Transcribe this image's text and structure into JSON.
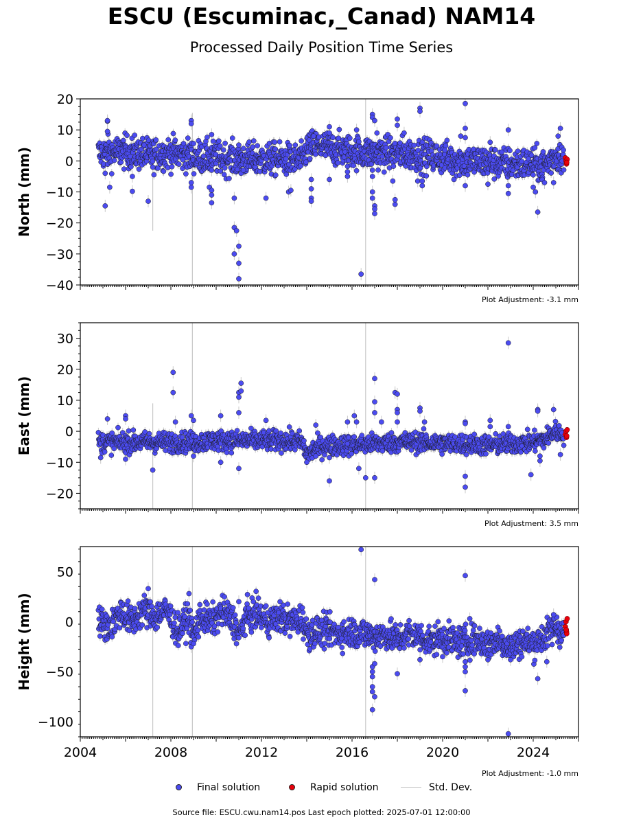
{
  "title": "ESCU (Escuminac,_Canad) NAM14",
  "subtitle": "Processed Daily Position Time Series",
  "colors": {
    "final": "#4b4bf0",
    "final_edge": "#1a1a1a",
    "rapid": "#e8000b",
    "std": "#c8c8c8"
  },
  "legend": {
    "final": "Final solution",
    "rapid": "Rapid solution",
    "std": "Std. Dev."
  },
  "source_text": "Source file: ESCU.cwu.nam14.pos  Last epoch plotted: 2025-07-01 12:00:00",
  "chart_data": [
    {
      "type": "scatter",
      "ylabel": "North (mm)",
      "adjustment": "Plot Adjustment: -3.1 mm",
      "xlim": [
        2004.0,
        2026.0
      ],
      "ylim": [
        -40,
        20
      ],
      "yticks": [
        -40,
        -30,
        -20,
        -10,
        0,
        10,
        20
      ],
      "yticklabels": [
        "−40",
        "−30",
        "−20",
        "−10",
        "0",
        "10",
        "20"
      ],
      "grid": false,
      "baseline": [
        [
          2004.8,
          2.5
        ],
        [
          2006.0,
          3.0
        ],
        [
          2007.0,
          2.0
        ],
        [
          2008.0,
          2.5
        ],
        [
          2009.0,
          1.5
        ],
        [
          2010.0,
          1.0
        ],
        [
          2011.0,
          0.5
        ],
        [
          2012.0,
          0.5
        ],
        [
          2013.0,
          0.5
        ],
        [
          2013.8,
          0.0
        ],
        [
          2014.0,
          4.0
        ],
        [
          2014.5,
          5.0
        ],
        [
          2015.0,
          4.0
        ],
        [
          2016.0,
          3.0
        ],
        [
          2017.0,
          2.5
        ],
        [
          2018.0,
          2.5
        ],
        [
          2019.0,
          2.0
        ],
        [
          2020.0,
          1.0
        ],
        [
          2021.0,
          0.0
        ],
        [
          2022.0,
          -0.5
        ],
        [
          2023.0,
          -1.0
        ],
        [
          2024.0,
          -1.0
        ],
        [
          2024.5,
          -1.5
        ],
        [
          2025.0,
          2.0
        ],
        [
          2025.35,
          1.0
        ]
      ],
      "scatter": 2.6,
      "outliers": [
        [
          2005.2,
          12.8
        ],
        [
          2005.2,
          13.0
        ],
        [
          2005.2,
          9.5
        ],
        [
          2005.1,
          -4.0
        ],
        [
          2005.1,
          -14.5
        ],
        [
          2005.3,
          -8.5
        ],
        [
          2006.3,
          -9.8
        ],
        [
          2006.3,
          -5.0
        ],
        [
          2007.0,
          -13.0
        ],
        [
          2007.2,
          -2.0
        ],
        [
          2008.9,
          13.0
        ],
        [
          2008.9,
          12.0
        ],
        [
          2008.9,
          -7.0
        ],
        [
          2008.9,
          -8.5
        ],
        [
          2009.8,
          8.5
        ],
        [
          2009.7,
          -8.5
        ],
        [
          2009.8,
          -9.5
        ],
        [
          2009.8,
          -11.0
        ],
        [
          2009.8,
          -13.5
        ],
        [
          2009.8,
          -3.0
        ],
        [
          2010.8,
          -12.0
        ],
        [
          2010.8,
          -21.5
        ],
        [
          2010.8,
          -30.0
        ],
        [
          2010.9,
          -22.5
        ],
        [
          2011.0,
          -33.0
        ],
        [
          2011.0,
          -27.5
        ],
        [
          2011.0,
          -38.0
        ],
        [
          2011.1,
          -4.0
        ],
        [
          2011.2,
          -3.0
        ],
        [
          2012.2,
          -12.0
        ],
        [
          2013.2,
          -10.0
        ],
        [
          2013.3,
          -9.5
        ],
        [
          2014.2,
          -6.0
        ],
        [
          2014.2,
          -9.0
        ],
        [
          2014.2,
          -12.0
        ],
        [
          2014.2,
          -13.0
        ],
        [
          2014.3,
          8.0
        ],
        [
          2015.0,
          11.0
        ],
        [
          2015.0,
          9.0
        ],
        [
          2015.0,
          -6.0
        ],
        [
          2015.8,
          -3.5
        ],
        [
          2015.8,
          -5.0
        ],
        [
          2016.4,
          -36.5
        ],
        [
          2016.2,
          10.0
        ],
        [
          2016.9,
          15.0
        ],
        [
          2016.9,
          14.0
        ],
        [
          2016.9,
          -10.0
        ],
        [
          2016.9,
          -12.0
        ],
        [
          2017.0,
          -14.5
        ],
        [
          2017.0,
          -15.5
        ],
        [
          2017.0,
          -17.0
        ],
        [
          2016.9,
          -5.0
        ],
        [
          2016.9,
          -3.0
        ],
        [
          2017.0,
          13.0
        ],
        [
          2017.1,
          9.0
        ],
        [
          2017.9,
          -14.0
        ],
        [
          2017.9,
          -12.5
        ],
        [
          2017.8,
          -6.5
        ],
        [
          2018.0,
          13.5
        ],
        [
          2018.0,
          11.5
        ],
        [
          2018.3,
          9.0
        ],
        [
          2019.0,
          17.0
        ],
        [
          2019.0,
          16.0
        ],
        [
          2018.9,
          -6.5
        ],
        [
          2019.1,
          -8.0
        ],
        [
          2019.1,
          -6.5
        ],
        [
          2020.1,
          3.5
        ],
        [
          2020.5,
          -6.0
        ],
        [
          2021.0,
          18.5
        ],
        [
          2021.0,
          10.5
        ],
        [
          2021.0,
          7.5
        ],
        [
          2021.0,
          -8.0
        ],
        [
          2020.8,
          8.0
        ],
        [
          2022.0,
          -7.5
        ],
        [
          2022.1,
          6.0
        ],
        [
          2022.9,
          10.0
        ],
        [
          2022.9,
          -8.0
        ],
        [
          2022.9,
          -10.5
        ],
        [
          2024.0,
          -8.5
        ],
        [
          2024.1,
          -10.0
        ],
        [
          2024.2,
          -16.5
        ],
        [
          2024.4,
          -6.0
        ],
        [
          2024.5,
          -7.0
        ],
        [
          2024.9,
          -7.0
        ],
        [
          2025.2,
          10.5
        ],
        [
          2025.1,
          8.0
        ]
      ],
      "rapid": [
        [
          2025.42,
          1.0
        ],
        [
          2025.45,
          0.0
        ],
        [
          2025.47,
          -1.0
        ],
        [
          2025.5,
          0.5
        ],
        [
          2025.48,
          -0.5
        ]
      ],
      "std_spikes": [
        [
          2008.95,
          -40,
          15.5
        ],
        [
          2016.6,
          -40,
          20
        ],
        [
          2007.2,
          -22.5,
          0
        ]
      ]
    },
    {
      "type": "scatter",
      "ylabel": "East (mm)",
      "adjustment": "Plot Adjustment: 3.5 mm",
      "xlim": [
        2004.0,
        2026.0
      ],
      "ylim": [
        -25,
        35
      ],
      "yticks": [
        -20,
        -10,
        0,
        10,
        20,
        30
      ],
      "yticklabels": [
        "−20",
        "−10",
        "0",
        "10",
        "20",
        "30"
      ],
      "grid": false,
      "baseline": [
        [
          2004.8,
          -3.5
        ],
        [
          2006.0,
          -3.5
        ],
        [
          2007.0,
          -3.5
        ],
        [
          2008.0,
          -3.5
        ],
        [
          2009.0,
          -3.5
        ],
        [
          2010.0,
          -3.0
        ],
        [
          2011.0,
          -3.0
        ],
        [
          2012.0,
          -3.0
        ],
        [
          2013.0,
          -3.0
        ],
        [
          2013.8,
          -3.5
        ],
        [
          2014.0,
          -7.5
        ],
        [
          2014.5,
          -5.0
        ],
        [
          2015.0,
          -4.5
        ],
        [
          2016.0,
          -4.5
        ],
        [
          2017.0,
          -4.0
        ],
        [
          2018.0,
          -3.5
        ],
        [
          2019.0,
          -3.5
        ],
        [
          2020.0,
          -4.0
        ],
        [
          2021.0,
          -4.0
        ],
        [
          2022.0,
          -4.5
        ],
        [
          2023.0,
          -4.0
        ],
        [
          2024.0,
          -3.5
        ],
        [
          2024.5,
          -2.5
        ],
        [
          2025.0,
          0.0
        ],
        [
          2025.35,
          -1.0
        ]
      ],
      "scatter": 1.6,
      "outliers": [
        [
          2004.9,
          -8.5
        ],
        [
          2005.2,
          4.0
        ],
        [
          2006.0,
          5.0
        ],
        [
          2006.0,
          4.0
        ],
        [
          2006.0,
          -9.0
        ],
        [
          2007.2,
          -12.5
        ],
        [
          2008.1,
          19.0
        ],
        [
          2008.1,
          12.5
        ],
        [
          2008.2,
          3.0
        ],
        [
          2008.9,
          5.0
        ],
        [
          2009.0,
          3.5
        ],
        [
          2009.0,
          -8.0
        ],
        [
          2010.2,
          5.0
        ],
        [
          2010.2,
          -10.0
        ],
        [
          2011.0,
          12.5
        ],
        [
          2011.0,
          11.0
        ],
        [
          2011.1,
          15.5
        ],
        [
          2011.1,
          13.0
        ],
        [
          2011.0,
          6.0
        ],
        [
          2011.0,
          -12.0
        ],
        [
          2012.2,
          3.5
        ],
        [
          2014.0,
          -10.0
        ],
        [
          2014.4,
          -8.0
        ],
        [
          2014.4,
          2.0
        ],
        [
          2015.0,
          -16.0
        ],
        [
          2015.0,
          -8.5
        ],
        [
          2015.8,
          -4.0
        ],
        [
          2015.8,
          3.0
        ],
        [
          2016.1,
          5.0
        ],
        [
          2016.2,
          3.0
        ],
        [
          2016.3,
          -12.0
        ],
        [
          2016.6,
          -15.0
        ],
        [
          2017.0,
          17.0
        ],
        [
          2017.0,
          9.5
        ],
        [
          2017.0,
          6.0
        ],
        [
          2017.0,
          -15.0
        ],
        [
          2017.3,
          3.0
        ],
        [
          2017.9,
          12.5
        ],
        [
          2018.0,
          12.0
        ],
        [
          2018.0,
          7.0
        ],
        [
          2018.0,
          6.0
        ],
        [
          2018.0,
          3.0
        ],
        [
          2019.0,
          7.5
        ],
        [
          2019.0,
          6.5
        ],
        [
          2019.2,
          3.0
        ],
        [
          2021.0,
          -14.5
        ],
        [
          2021.0,
          -18.0
        ],
        [
          2021.0,
          3.0
        ],
        [
          2021.0,
          2.5
        ],
        [
          2021.2,
          -3.0
        ],
        [
          2022.1,
          3.5
        ],
        [
          2022.1,
          1.5
        ],
        [
          2022.9,
          28.5
        ],
        [
          2022.9,
          1.5
        ],
        [
          2023.9,
          -14.0
        ],
        [
          2024.2,
          7.0
        ],
        [
          2024.2,
          6.5
        ],
        [
          2024.3,
          -8.0
        ],
        [
          2024.3,
          -9.5
        ],
        [
          2024.9,
          7.0
        ],
        [
          2025.2,
          -7.5
        ]
      ],
      "rapid": [
        [
          2025.42,
          -1.0
        ],
        [
          2025.45,
          0.0
        ],
        [
          2025.47,
          -2.0
        ],
        [
          2025.5,
          0.5
        ],
        [
          2025.48,
          -1.5
        ]
      ],
      "std_spikes": [
        [
          2008.95,
          -25,
          35
        ],
        [
          2016.6,
          -25,
          35
        ],
        [
          2007.2,
          -25,
          9
        ]
      ]
    },
    {
      "type": "scatter",
      "ylabel": "Height (mm)",
      "adjustment": "Plot Adjustment: -1.0 mm",
      "xlabel": "",
      "xlim": [
        2004.0,
        2026.0
      ],
      "ylim": [
        -115,
        75
      ],
      "yticks": [
        -100,
        -50,
        0,
        50
      ],
      "yticklabels": [
        "−100",
        "−50",
        "0",
        "50"
      ],
      "xticks": [
        2004,
        2008,
        2012,
        2016,
        2020,
        2024
      ],
      "xticklabels": [
        "2004",
        "2008",
        "2012",
        "2016",
        "2020",
        "2024"
      ],
      "grid": false,
      "baseline": [
        [
          2004.8,
          0
        ],
        [
          2005.3,
          -5
        ],
        [
          2005.8,
          10
        ],
        [
          2006.3,
          0
        ],
        [
          2006.8,
          12
        ],
        [
          2007.3,
          5
        ],
        [
          2007.8,
          12
        ],
        [
          2008.3,
          -10
        ],
        [
          2008.8,
          5
        ],
        [
          2009.0,
          -15
        ],
        [
          2009.3,
          5
        ],
        [
          2009.8,
          0
        ],
        [
          2010.3,
          10
        ],
        [
          2010.8,
          0
        ],
        [
          2011.0,
          -15
        ],
        [
          2011.3,
          5
        ],
        [
          2011.8,
          8
        ],
        [
          2012.3,
          0
        ],
        [
          2012.8,
          5
        ],
        [
          2013.3,
          0
        ],
        [
          2013.8,
          3
        ],
        [
          2014.0,
          -12
        ],
        [
          2014.5,
          -10
        ],
        [
          2015.0,
          -10
        ],
        [
          2015.5,
          -12
        ],
        [
          2016.0,
          -10
        ],
        [
          2016.5,
          -12
        ],
        [
          2017.0,
          -15
        ],
        [
          2017.5,
          -12
        ],
        [
          2018.0,
          -18
        ],
        [
          2018.5,
          -12
        ],
        [
          2019.0,
          -15
        ],
        [
          2019.5,
          -20
        ],
        [
          2020.0,
          -15
        ],
        [
          2020.5,
          -20
        ],
        [
          2021.0,
          -20
        ],
        [
          2021.5,
          -18
        ],
        [
          2022.0,
          -22
        ],
        [
          2022.5,
          -18
        ],
        [
          2023.0,
          -25
        ],
        [
          2023.5,
          -20
        ],
        [
          2024.0,
          -22
        ],
        [
          2024.5,
          -15
        ],
        [
          2025.0,
          -5
        ],
        [
          2025.35,
          -12
        ]
      ],
      "scatter": 7.5,
      "outliers": [
        [
          2007.0,
          33
        ],
        [
          2008.8,
          28
        ],
        [
          2008.9,
          -25
        ],
        [
          2009.0,
          -22
        ],
        [
          2011.0,
          20
        ],
        [
          2016.4,
          72
        ],
        [
          2017.0,
          42
        ],
        [
          2016.9,
          -45
        ],
        [
          2016.9,
          -50
        ],
        [
          2016.9,
          -55
        ],
        [
          2016.9,
          -65
        ],
        [
          2016.9,
          -70
        ],
        [
          2017.0,
          -75
        ],
        [
          2016.9,
          -88
        ],
        [
          2017.0,
          -42
        ],
        [
          2018.0,
          -52
        ],
        [
          2019.0,
          -38
        ],
        [
          2020.0,
          -35
        ],
        [
          2021.0,
          46
        ],
        [
          2021.0,
          -69
        ],
        [
          2021.0,
          -50
        ],
        [
          2021.0,
          -45
        ],
        [
          2021.0,
          -40
        ],
        [
          2021.2,
          3
        ],
        [
          2022.0,
          -38
        ],
        [
          2022.9,
          -112
        ],
        [
          2024.2,
          -57
        ],
        [
          2024.6,
          -40
        ],
        [
          2024.9,
          7
        ],
        [
          2023.0,
          -38
        ]
      ],
      "rapid": [
        [
          2025.42,
          -5
        ],
        [
          2025.45,
          0
        ],
        [
          2025.47,
          -10
        ],
        [
          2025.5,
          3
        ],
        [
          2025.48,
          -12
        ],
        [
          2025.46,
          -8
        ]
      ],
      "std_spikes": [
        [
          2008.95,
          -115,
          75
        ],
        [
          2016.6,
          -115,
          75
        ],
        [
          2007.2,
          -115,
          75
        ]
      ]
    }
  ]
}
